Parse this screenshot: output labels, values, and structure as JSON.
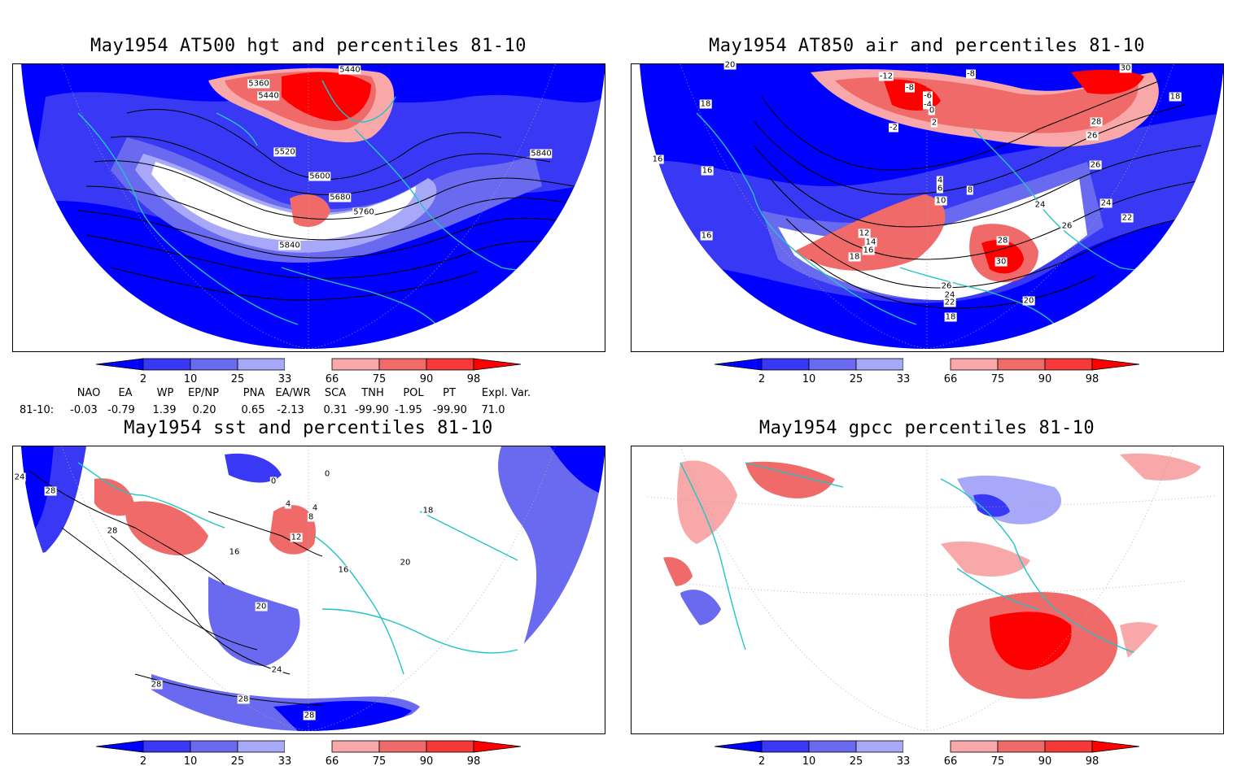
{
  "panels": [
    {
      "title": "May1954 AT500 hgt and percentiles 81-10",
      "labels": [
        "5360",
        "5440",
        "5440",
        "5520",
        "5600",
        "5680",
        "5760",
        "5840",
        "5840"
      ]
    },
    {
      "title": "May1954 AT850 air and percentiles 81-10",
      "labels": [
        "20",
        "-12",
        "-8",
        "-8",
        "-6",
        "-4",
        "-2",
        "0",
        "2",
        "30",
        "28",
        "26",
        "18",
        "18",
        "16",
        "16",
        "16",
        "26",
        "4",
        "6",
        "8",
        "10",
        "12",
        "14",
        "16",
        "18",
        "24",
        "26",
        "24",
        "22",
        "28",
        "30",
        "26",
        "24",
        "22",
        "20",
        "18"
      ]
    },
    {
      "title": "May1954 sst and percentiles 81-10",
      "labels": [
        "24",
        "28",
        "28",
        "0",
        "0",
        "4",
        "4",
        "8",
        "12",
        "16",
        "16",
        "18",
        "20",
        "20",
        "24",
        "28",
        "28",
        "28"
      ]
    },
    {
      "title": "May1954 gpcc percentiles 81-10",
      "labels": []
    }
  ],
  "colorbar": {
    "ticks": [
      "2",
      "10",
      "25",
      "33",
      "66",
      "75",
      "90",
      "98"
    ],
    "colors": [
      "#0000ff",
      "#3838f5",
      "#6a6af0",
      "#a8a8f8",
      "#ffffff",
      "#f8a8a8",
      "#f06a6a",
      "#f53838",
      "#ff0000"
    ]
  },
  "indices": {
    "header": [
      "NAO",
      "EA",
      "WP",
      "EP/NP",
      "PNA",
      "EA/WR",
      "SCA",
      "TNH",
      "POL",
      "PT",
      "Expl. Var."
    ],
    "row_label": "81-10:",
    "values": [
      "-0.03",
      "-0.79",
      "1.39",
      "0.20",
      "0.65",
      "-2.13",
      "0.31",
      "-99.90",
      "-1.95",
      "-99.90",
      "71.0"
    ]
  }
}
